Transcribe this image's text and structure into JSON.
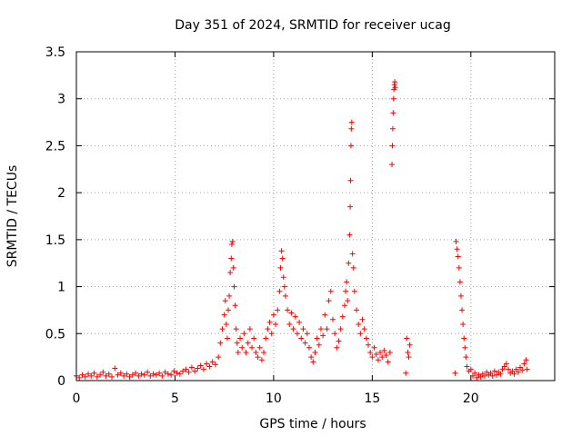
{
  "chart_data": {
    "type": "scatter",
    "title": "Day 351 of 2024, SRMTID for receiver ucag",
    "xlabel": "GPS time / hours",
    "ylabel": "SRMTID / TECUs",
    "xlim": [
      0,
      24.25
    ],
    "ylim": [
      0,
      3.5
    ],
    "xticks": [
      0,
      5,
      10,
      15,
      20
    ],
    "xtick_labels": [
      "0",
      "5",
      "10",
      "15",
      "20"
    ],
    "yticks": [
      0,
      0.5,
      1,
      1.5,
      2,
      2.5,
      3,
      3.5
    ],
    "ytick_labels": [
      "0",
      "0.5",
      "1",
      "1.5",
      "2",
      "2.5",
      "3",
      "3.5"
    ],
    "grid": true,
    "marker": "+",
    "marker_color": "#ff0000",
    "series": [
      {
        "name": "SRMTID",
        "points": [
          [
            0.0,
            0.05
          ],
          [
            0.15,
            0.03
          ],
          [
            0.3,
            0.06
          ],
          [
            0.45,
            0.04
          ],
          [
            0.6,
            0.07
          ],
          [
            0.75,
            0.05
          ],
          [
            0.9,
            0.08
          ],
          [
            1.05,
            0.04
          ],
          [
            1.2,
            0.06
          ],
          [
            1.35,
            0.09
          ],
          [
            1.5,
            0.05
          ],
          [
            1.65,
            0.07
          ],
          [
            1.8,
            0.04
          ],
          [
            1.95,
            0.13
          ],
          [
            2.1,
            0.06
          ],
          [
            2.25,
            0.08
          ],
          [
            2.4,
            0.05
          ],
          [
            2.55,
            0.07
          ],
          [
            2.7,
            0.04
          ],
          [
            2.85,
            0.06
          ],
          [
            3.0,
            0.08
          ],
          [
            3.15,
            0.05
          ],
          [
            3.3,
            0.07
          ],
          [
            3.45,
            0.06
          ],
          [
            3.6,
            0.09
          ],
          [
            3.75,
            0.05
          ],
          [
            3.9,
            0.07
          ],
          [
            4.05,
            0.06
          ],
          [
            4.2,
            0.08
          ],
          [
            4.35,
            0.05
          ],
          [
            4.5,
            0.09
          ],
          [
            4.65,
            0.07
          ],
          [
            4.8,
            0.06
          ],
          [
            4.95,
            0.1
          ],
          [
            5.1,
            0.08
          ],
          [
            5.25,
            0.07
          ],
          [
            5.4,
            0.1
          ],
          [
            5.55,
            0.12
          ],
          [
            5.7,
            0.09
          ],
          [
            5.85,
            0.14
          ],
          [
            6.0,
            0.1
          ],
          [
            6.15,
            0.13
          ],
          [
            6.3,
            0.16
          ],
          [
            6.45,
            0.12
          ],
          [
            6.6,
            0.18
          ],
          [
            6.75,
            0.15
          ],
          [
            6.9,
            0.2
          ],
          [
            7.05,
            0.17
          ],
          [
            7.2,
            0.25
          ],
          [
            7.3,
            0.4
          ],
          [
            7.4,
            0.55
          ],
          [
            7.5,
            0.7
          ],
          [
            7.55,
            0.85
          ],
          [
            7.6,
            0.6
          ],
          [
            7.65,
            0.45
          ],
          [
            7.7,
            0.75
          ],
          [
            7.75,
            0.9
          ],
          [
            7.8,
            1.15
          ],
          [
            7.85,
            1.3
          ],
          [
            7.88,
            1.45
          ],
          [
            7.92,
            1.48
          ],
          [
            7.96,
            1.2
          ],
          [
            8.0,
            1.0
          ],
          [
            8.05,
            0.8
          ],
          [
            8.1,
            0.55
          ],
          [
            8.15,
            0.4
          ],
          [
            8.2,
            0.3
          ],
          [
            8.3,
            0.45
          ],
          [
            8.4,
            0.35
          ],
          [
            8.5,
            0.5
          ],
          [
            8.6,
            0.3
          ],
          [
            8.7,
            0.4
          ],
          [
            8.8,
            0.55
          ],
          [
            8.9,
            0.35
          ],
          [
            9.0,
            0.45
          ],
          [
            9.1,
            0.3
          ],
          [
            9.2,
            0.25
          ],
          [
            9.3,
            0.35
          ],
          [
            9.4,
            0.22
          ],
          [
            9.5,
            0.3
          ],
          [
            9.6,
            0.45
          ],
          [
            9.7,
            0.55
          ],
          [
            9.8,
            0.62
          ],
          [
            9.9,
            0.5
          ],
          [
            10.0,
            0.7
          ],
          [
            10.1,
            0.6
          ],
          [
            10.2,
            0.75
          ],
          [
            10.3,
            0.95
          ],
          [
            10.35,
            1.2
          ],
          [
            10.4,
            1.38
          ],
          [
            10.45,
            1.3
          ],
          [
            10.5,
            1.1
          ],
          [
            10.55,
            1.0
          ],
          [
            10.6,
            0.9
          ],
          [
            10.7,
            0.75
          ],
          [
            10.8,
            0.6
          ],
          [
            10.9,
            0.72
          ],
          [
            11.0,
            0.55
          ],
          [
            11.1,
            0.68
          ],
          [
            11.2,
            0.5
          ],
          [
            11.3,
            0.62
          ],
          [
            11.4,
            0.45
          ],
          [
            11.5,
            0.55
          ],
          [
            11.6,
            0.4
          ],
          [
            11.7,
            0.5
          ],
          [
            11.8,
            0.35
          ],
          [
            11.9,
            0.25
          ],
          [
            12.0,
            0.2
          ],
          [
            12.1,
            0.3
          ],
          [
            12.2,
            0.45
          ],
          [
            12.3,
            0.38
          ],
          [
            12.4,
            0.55
          ],
          [
            12.5,
            0.48
          ],
          [
            12.6,
            0.7
          ],
          [
            12.7,
            0.55
          ],
          [
            12.8,
            0.85
          ],
          [
            12.9,
            0.95
          ],
          [
            13.0,
            0.65
          ],
          [
            13.1,
            0.5
          ],
          [
            13.2,
            0.35
          ],
          [
            13.3,
            0.42
          ],
          [
            13.4,
            0.55
          ],
          [
            13.5,
            0.68
          ],
          [
            13.6,
            0.8
          ],
          [
            13.65,
            0.95
          ],
          [
            13.7,
            1.05
          ],
          [
            13.75,
            0.85
          ],
          [
            13.8,
            1.25
          ],
          [
            13.85,
            1.55
          ],
          [
            13.88,
            1.85
          ],
          [
            13.9,
            2.13
          ],
          [
            13.92,
            2.5
          ],
          [
            13.94,
            2.68
          ],
          [
            13.96,
            2.75
          ],
          [
            14.0,
            1.35
          ],
          [
            14.05,
            1.2
          ],
          [
            14.1,
            0.95
          ],
          [
            14.2,
            0.75
          ],
          [
            14.3,
            0.6
          ],
          [
            14.4,
            0.5
          ],
          [
            14.5,
            0.65
          ],
          [
            14.6,
            0.55
          ],
          [
            14.7,
            0.45
          ],
          [
            14.8,
            0.38
          ],
          [
            14.9,
            0.3
          ],
          [
            15.0,
            0.25
          ],
          [
            15.1,
            0.35
          ],
          [
            15.2,
            0.28
          ],
          [
            15.3,
            0.22
          ],
          [
            15.4,
            0.3
          ],
          [
            15.5,
            0.25
          ],
          [
            15.6,
            0.32
          ],
          [
            15.7,
            0.27
          ],
          [
            15.8,
            0.2
          ],
          [
            15.9,
            0.3
          ],
          [
            16.0,
            2.3
          ],
          [
            16.02,
            2.5
          ],
          [
            16.04,
            2.68
          ],
          [
            16.06,
            2.85
          ],
          [
            16.08,
            3.0
          ],
          [
            16.1,
            3.1
          ],
          [
            16.12,
            3.15
          ],
          [
            16.14,
            3.18
          ],
          [
            16.16,
            3.12
          ],
          [
            16.7,
            0.08
          ],
          [
            16.75,
            0.45
          ],
          [
            16.8,
            0.3
          ],
          [
            16.85,
            0.25
          ],
          [
            16.9,
            0.38
          ],
          [
            19.2,
            0.08
          ],
          [
            19.25,
            1.48
          ],
          [
            19.3,
            1.4
          ],
          [
            19.35,
            1.32
          ],
          [
            19.4,
            1.2
          ],
          [
            19.45,
            1.05
          ],
          [
            19.5,
            0.9
          ],
          [
            19.55,
            0.75
          ],
          [
            19.6,
            0.6
          ],
          [
            19.65,
            0.45
          ],
          [
            19.7,
            0.35
          ],
          [
            19.75,
            0.25
          ],
          [
            19.8,
            0.15
          ],
          [
            19.9,
            0.1
          ],
          [
            20.0,
            0.12
          ],
          [
            20.1,
            0.05
          ],
          [
            20.2,
            0.08
          ],
          [
            20.3,
            0.03
          ],
          [
            20.4,
            0.06
          ],
          [
            20.5,
            0.04
          ],
          [
            20.6,
            0.07
          ],
          [
            20.7,
            0.05
          ],
          [
            20.8,
            0.09
          ],
          [
            20.9,
            0.06
          ],
          [
            21.0,
            0.08
          ],
          [
            21.1,
            0.05
          ],
          [
            21.2,
            0.1
          ],
          [
            21.3,
            0.06
          ],
          [
            21.4,
            0.09
          ],
          [
            21.5,
            0.07
          ],
          [
            21.6,
            0.12
          ],
          [
            21.7,
            0.15
          ],
          [
            21.8,
            0.18
          ],
          [
            21.9,
            0.12
          ],
          [
            22.0,
            0.08
          ],
          [
            22.1,
            0.1
          ],
          [
            22.2,
            0.07
          ],
          [
            22.3,
            0.12
          ],
          [
            22.4,
            0.09
          ],
          [
            22.5,
            0.14
          ],
          [
            22.6,
            0.11
          ],
          [
            22.7,
            0.18
          ],
          [
            22.8,
            0.22
          ],
          [
            22.85,
            0.12
          ]
        ]
      }
    ]
  }
}
